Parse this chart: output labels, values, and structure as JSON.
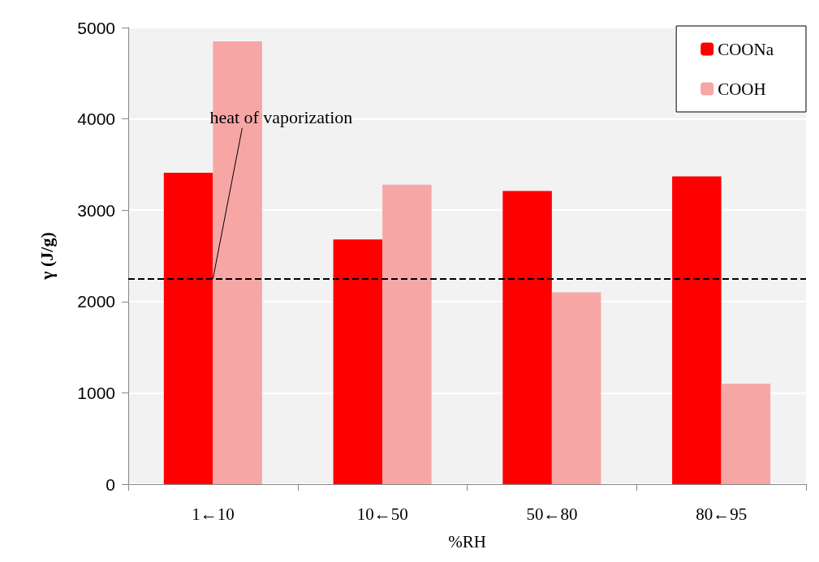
{
  "chart_data": {
    "type": "bar",
    "xlabel": "%RH",
    "ylabel": "γ (J/g)",
    "categories": [
      "1←10",
      "10←50",
      "50←80",
      "80←95"
    ],
    "series": [
      {
        "name": "COONa",
        "color": "#ff0000",
        "values": [
          3410,
          2680,
          3210,
          3370
        ]
      },
      {
        "name": "COOH",
        "color": "#f7a6a6",
        "values": [
          4850,
          3280,
          2100,
          1100
        ]
      }
    ],
    "ylim": [
      0,
      5000
    ],
    "yticks": [
      0,
      1000,
      2000,
      3000,
      4000,
      5000
    ],
    "grid": "y",
    "legend": "top right",
    "ref_lines": [
      {
        "axis": "y",
        "value": 2250,
        "color": "#000000",
        "line_style": "dashed"
      }
    ],
    "annotations": [
      {
        "text": "heat of vaporization",
        "x": "1←10",
        "y": 2250
      }
    ]
  }
}
